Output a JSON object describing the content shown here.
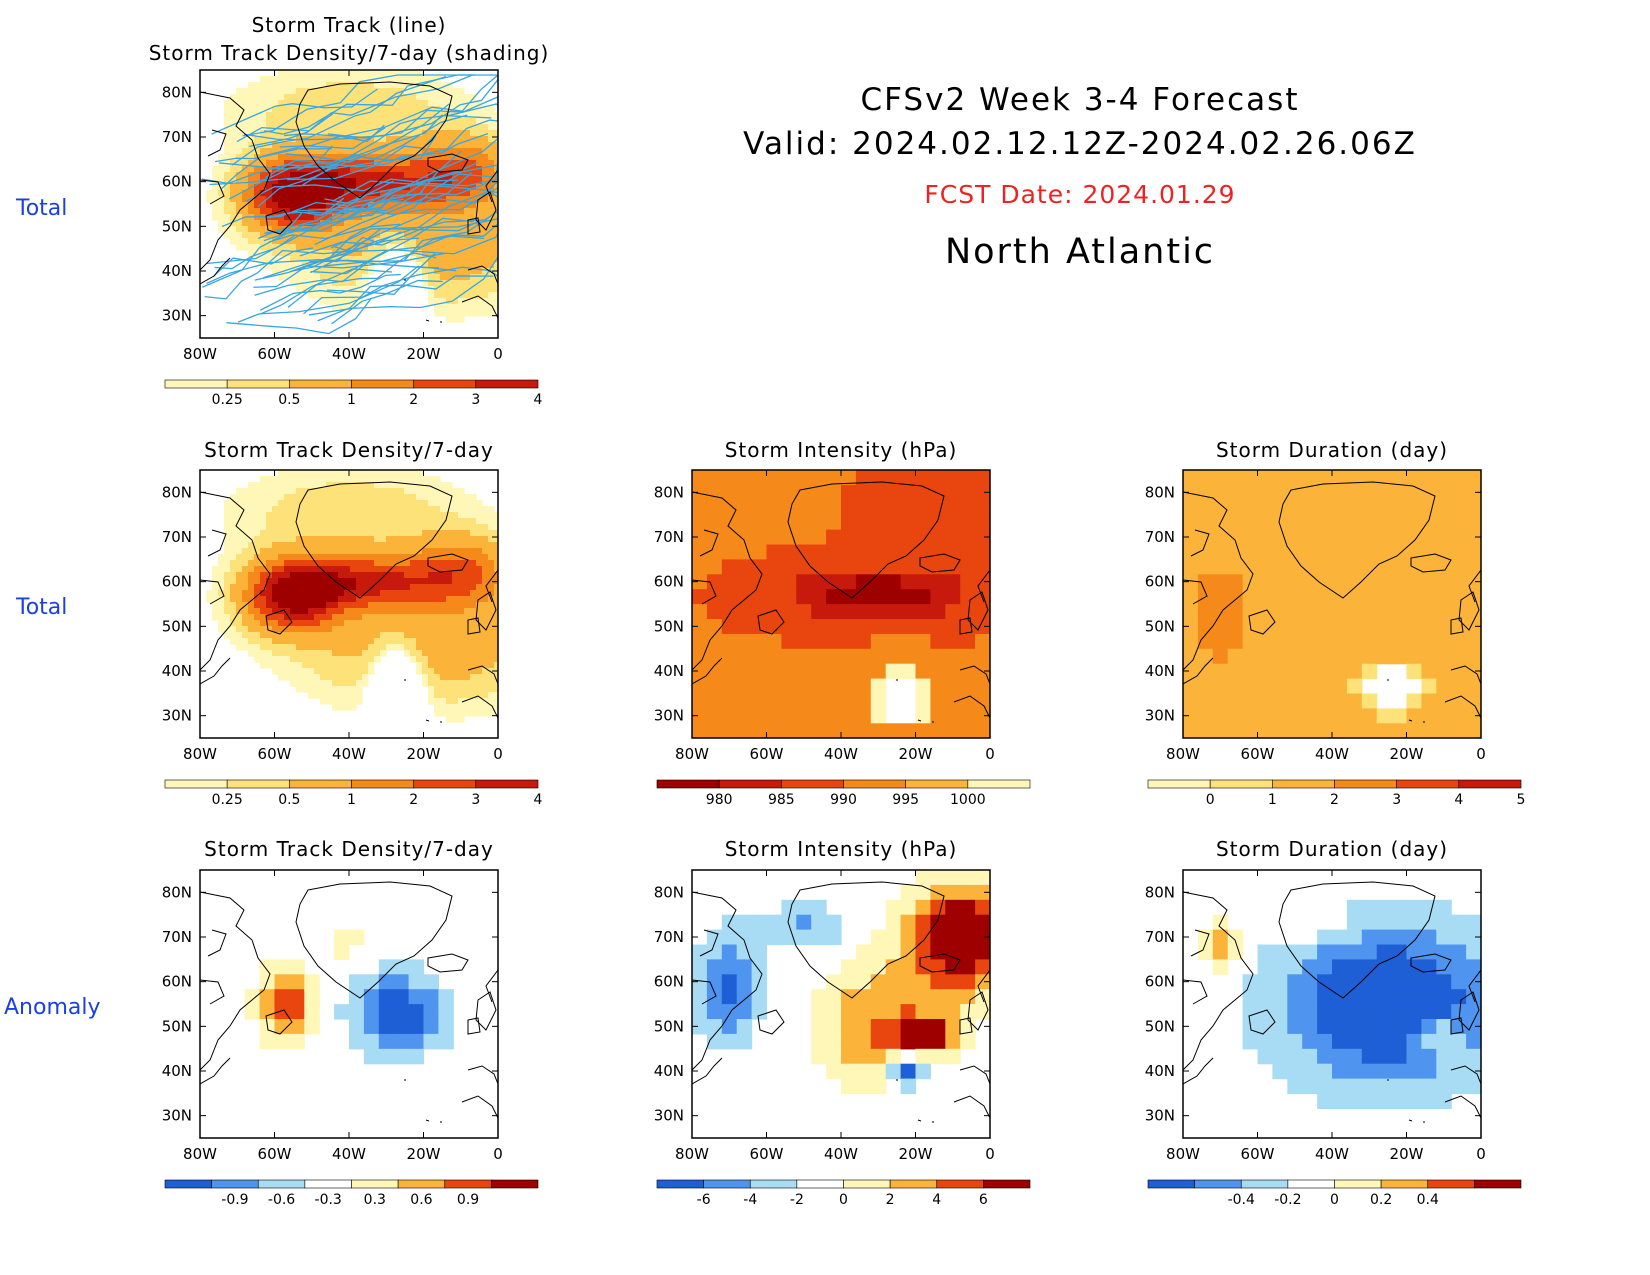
{
  "header": {
    "line1": "CFSv2 Week 3-4 Forecast",
    "line2": "Valid: 2024.02.12.12Z-2024.02.26.06Z",
    "fcst": "FCST Date: 2024.01.29",
    "region": "North Atlantic"
  },
  "row_labels": [
    "Total",
    "Total",
    "Anomaly"
  ],
  "colors": {
    "row_label": "#1a3fe6",
    "fcst": "#ee2222",
    "track_line": "#3aa6e0",
    "warm": [
      "#fff7b8",
      "#fde27a",
      "#fbb33a",
      "#f58a1a",
      "#e8450f",
      "#c81a0c",
      "#9e0000"
    ],
    "cool": [
      "#1f5fd6",
      "#4f94ee",
      "#a8dcf5"
    ]
  },
  "chart_data": [
    {
      "type": "heatmap",
      "id": "top-track",
      "title": [
        "Storm Track (line)",
        "Storm Track Density/7-day (shading)"
      ],
      "xticks": [
        "80W",
        "60W",
        "40W",
        "20W",
        "0"
      ],
      "yticks": [
        "80N",
        "70N",
        "60N",
        "50N",
        "40N",
        "30N"
      ],
      "xlim": [
        -80,
        0
      ],
      "ylim": [
        25,
        85
      ],
      "colorbar": [
        "0.25",
        "0.5",
        "1",
        "2",
        "3",
        "4"
      ],
      "overlay": "storm-track-lines"
    },
    {
      "type": "heatmap",
      "id": "total-density",
      "title": [
        "Storm Track Density/7-day"
      ],
      "xticks": [
        "80W",
        "60W",
        "40W",
        "20W",
        "0"
      ],
      "yticks": [
        "80N",
        "70N",
        "60N",
        "50N",
        "40N",
        "30N"
      ],
      "xlim": [
        -80,
        0
      ],
      "ylim": [
        25,
        85
      ],
      "colorbar": [
        "0.25",
        "0.5",
        "1",
        "2",
        "3",
        "4"
      ]
    },
    {
      "type": "heatmap",
      "id": "total-intensity",
      "title": [
        "Storm Intensity (hPa)"
      ],
      "xticks": [
        "80W",
        "60W",
        "40W",
        "20W",
        "0"
      ],
      "yticks": [
        "80N",
        "70N",
        "60N",
        "50N",
        "40N",
        "30N"
      ],
      "xlim": [
        -80,
        0
      ],
      "ylim": [
        25,
        85
      ],
      "colorbar": [
        "980",
        "985",
        "990",
        "995",
        "1000"
      ]
    },
    {
      "type": "heatmap",
      "id": "total-duration",
      "title": [
        "Storm Duration (day)"
      ],
      "xticks": [
        "80W",
        "60W",
        "40W",
        "20W",
        "0"
      ],
      "yticks": [
        "80N",
        "70N",
        "60N",
        "50N",
        "40N",
        "30N"
      ],
      "xlim": [
        -80,
        0
      ],
      "ylim": [
        25,
        85
      ],
      "colorbar": [
        "0",
        "1",
        "2",
        "3",
        "4",
        "5"
      ]
    },
    {
      "type": "heatmap",
      "id": "anom-density",
      "title": [
        "Storm Track Density/7-day"
      ],
      "xticks": [
        "80W",
        "60W",
        "40W",
        "20W",
        "0"
      ],
      "yticks": [
        "80N",
        "70N",
        "60N",
        "50N",
        "40N",
        "30N"
      ],
      "xlim": [
        -80,
        0
      ],
      "ylim": [
        25,
        85
      ],
      "colorbar": [
        "-0.9",
        "-0.6",
        "-0.3",
        "0.3",
        "0.6",
        "0.9"
      ]
    },
    {
      "type": "heatmap",
      "id": "anom-intensity",
      "title": [
        "Storm Intensity (hPa)"
      ],
      "xticks": [
        "80W",
        "60W",
        "40W",
        "20W",
        "0"
      ],
      "yticks": [
        "80N",
        "70N",
        "60N",
        "50N",
        "40N",
        "30N"
      ],
      "xlim": [
        -80,
        0
      ],
      "ylim": [
        25,
        85
      ],
      "colorbar": [
        "-6",
        "-4",
        "-2",
        "0",
        "2",
        "4",
        "6"
      ]
    },
    {
      "type": "heatmap",
      "id": "anom-duration",
      "title": [
        "Storm Duration (day)"
      ],
      "xticks": [
        "80W",
        "60W",
        "40W",
        "20W",
        "0"
      ],
      "yticks": [
        "80N",
        "70N",
        "60N",
        "50N",
        "40N",
        "30N"
      ],
      "xlim": [
        -80,
        0
      ],
      "ylim": [
        25,
        85
      ],
      "colorbar": [
        "-0.4",
        "-0.2",
        "0",
        "0.2",
        "0.4"
      ]
    }
  ]
}
